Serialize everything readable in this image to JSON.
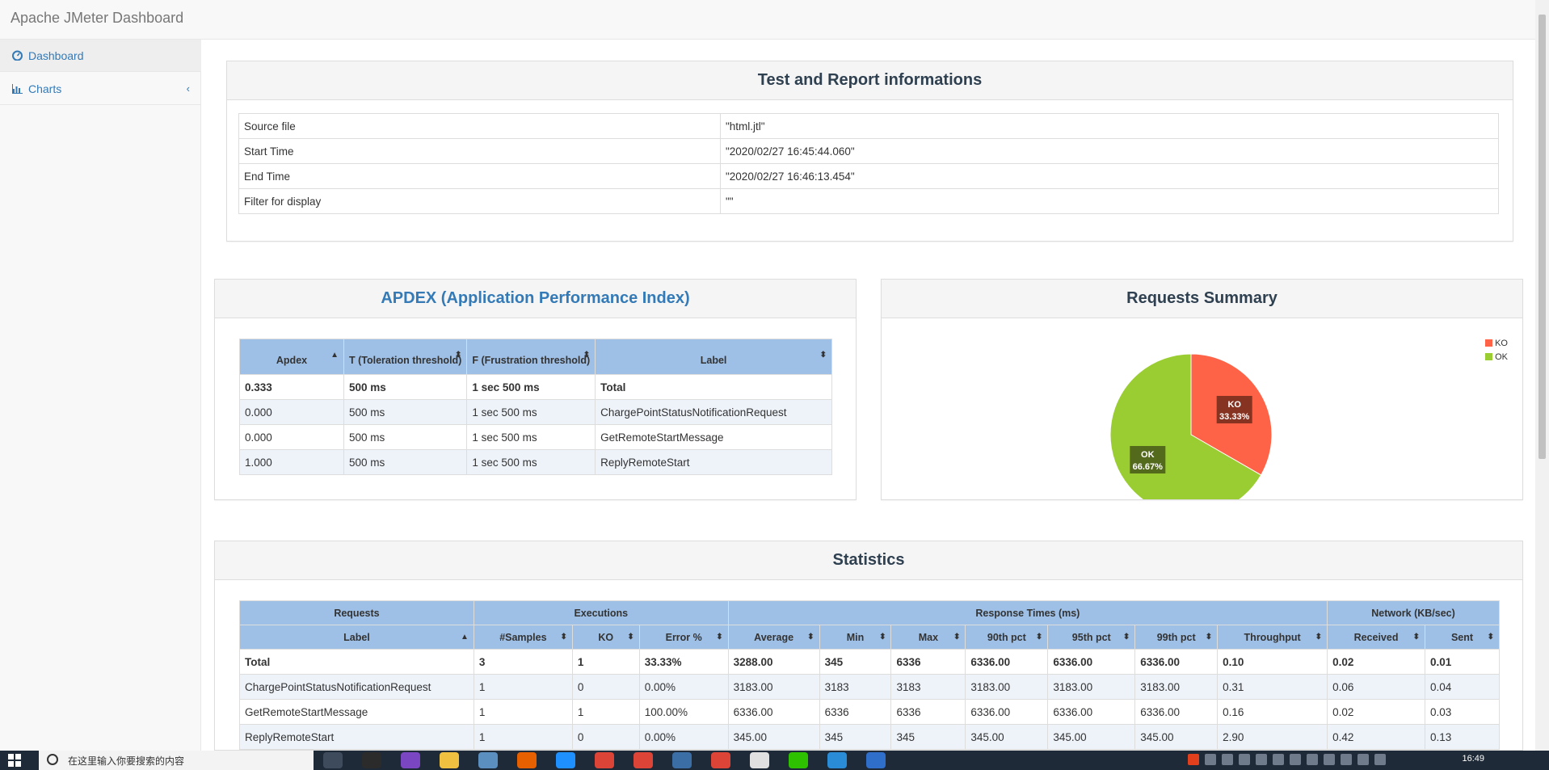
{
  "navbar": {
    "brand": "Apache JMeter Dashboard"
  },
  "sidebar": {
    "items": [
      {
        "label": "Dashboard",
        "icon": "dashboard-icon"
      },
      {
        "label": "Charts",
        "icon": "bar-chart-icon",
        "arrow": "‹"
      }
    ]
  },
  "test_info": {
    "title": "Test and Report informations",
    "rows": [
      {
        "key": "Source file",
        "value": "\"html.jtl\""
      },
      {
        "key": "Start Time",
        "value": "\"2020/02/27 16:45:44.060\""
      },
      {
        "key": "End Time",
        "value": "\"2020/02/27 16:46:13.454\""
      },
      {
        "key": "Filter for display",
        "value": "\"\""
      }
    ]
  },
  "apdex": {
    "title": "APDEX (Application Performance Index)",
    "headers": [
      "Apdex",
      "T (Toleration threshold)",
      "F (Frustration threshold)",
      "Label"
    ],
    "rows": [
      [
        "0.333",
        "500 ms",
        "1 sec 500 ms",
        "Total"
      ],
      [
        "0.000",
        "500 ms",
        "1 sec 500 ms",
        "ChargePointStatusNotificationRequest"
      ],
      [
        "0.000",
        "500 ms",
        "1 sec 500 ms",
        "GetRemoteStartMessage"
      ],
      [
        "1.000",
        "500 ms",
        "1 sec 500 ms",
        "ReplyRemoteStart"
      ]
    ]
  },
  "requests_summary": {
    "title": "Requests Summary"
  },
  "chart_data": {
    "type": "pie",
    "title": "Requests Summary",
    "categories": [
      "KO",
      "OK"
    ],
    "values": [
      33.33,
      66.67
    ],
    "labels": [
      "33.33%",
      "66.67%"
    ],
    "colors": [
      "#ff6347",
      "#9acd32"
    ],
    "legend": "top-right"
  },
  "statistics": {
    "title": "Statistics",
    "groups": [
      "Requests",
      "Executions",
      "Response Times (ms)",
      "Network (KB/sec)"
    ],
    "headers": [
      "Label",
      "#Samples",
      "KO",
      "Error %",
      "Average",
      "Min",
      "Max",
      "90th pct",
      "95th pct",
      "99th pct",
      "Throughput",
      "Received",
      "Sent"
    ],
    "rows": [
      [
        "Total",
        "3",
        "1",
        "33.33%",
        "3288.00",
        "345",
        "6336",
        "6336.00",
        "6336.00",
        "6336.00",
        "0.10",
        "0.02",
        "0.01"
      ],
      [
        "ChargePointStatusNotificationRequest",
        "1",
        "0",
        "0.00%",
        "3183.00",
        "3183",
        "3183",
        "3183.00",
        "3183.00",
        "3183.00",
        "0.31",
        "0.06",
        "0.04"
      ],
      [
        "GetRemoteStartMessage",
        "1",
        "1",
        "100.00%",
        "6336.00",
        "6336",
        "6336",
        "6336.00",
        "6336.00",
        "6336.00",
        "0.16",
        "0.02",
        "0.03"
      ],
      [
        "ReplyRemoteStart",
        "1",
        "0",
        "0.00%",
        "345.00",
        "345",
        "345",
        "345.00",
        "345.00",
        "345.00",
        "2.90",
        "0.42",
        "0.13"
      ]
    ]
  },
  "taskbar": {
    "search_placeholder": "在这里输入你要搜索的内容",
    "time": "16:49"
  }
}
